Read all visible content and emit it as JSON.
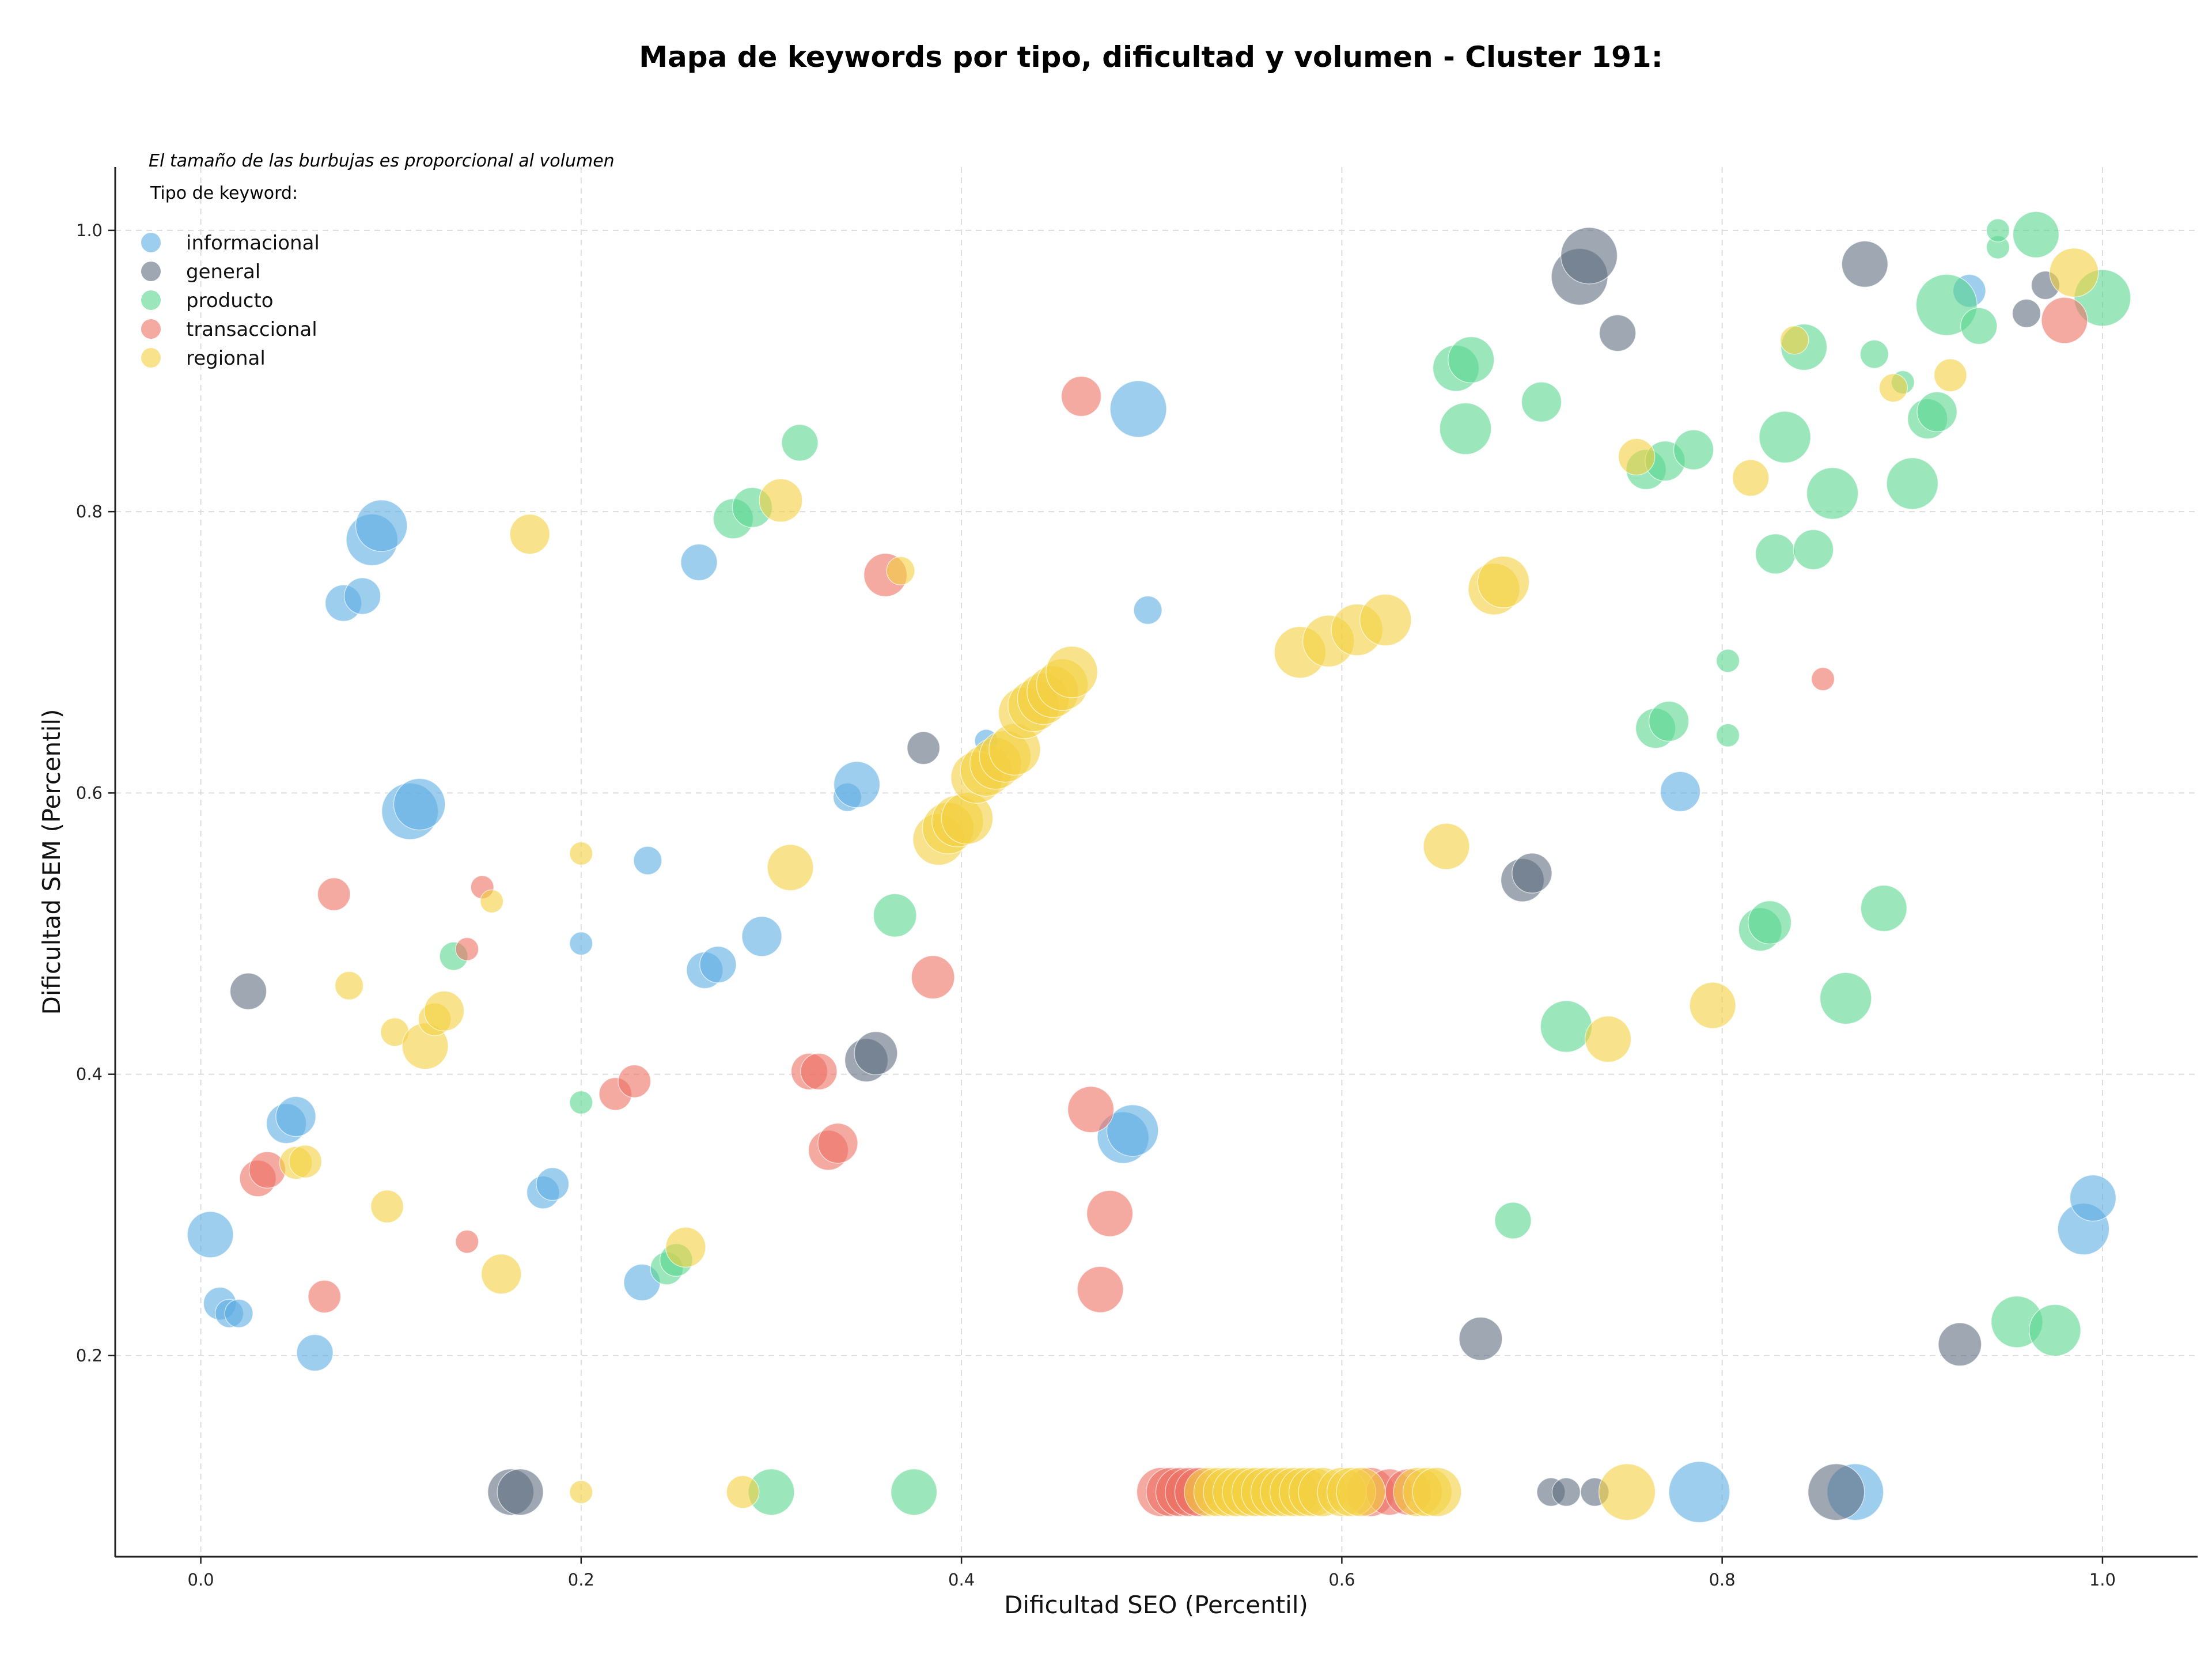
{
  "chart_data": {
    "type": "scatter",
    "title": "Mapa de keywords por tipo, dificultad y volumen - Cluster 191:",
    "xlabel": "Dificultad SEO (Percentil)",
    "ylabel": "Dificultad SEM (Percentil)",
    "xlim": [
      -0.045,
      1.05
    ],
    "ylim": [
      0.057,
      1.045
    ],
    "xticks": [
      "0.0",
      "0.2",
      "0.4",
      "0.6",
      "0.8",
      "1.0"
    ],
    "yticks": [
      "0.2",
      "0.4",
      "0.6",
      "0.8",
      "1.0"
    ],
    "grid": true,
    "note": "El tamaño de las burbujas es proporcional al volumen",
    "legend": {
      "title": "Tipo de keyword:",
      "placement": "top-left",
      "entries": [
        "informacional",
        "general",
        "producto",
        "transaccional",
        "regional"
      ]
    },
    "series": [
      {
        "name": "informacional",
        "color": "#5DADE2",
        "points": [
          [
            0.005,
            0.286,
            4
          ],
          [
            0.01,
            0.237,
            2
          ],
          [
            0.015,
            0.23,
            1.5
          ],
          [
            0.02,
            0.23,
            1.5
          ],
          [
            0.045,
            0.365,
            3
          ],
          [
            0.05,
            0.37,
            3
          ],
          [
            0.06,
            0.202,
            2.5
          ],
          [
            0.075,
            0.735,
            2.5
          ],
          [
            0.085,
            0.74,
            2.5
          ],
          [
            0.09,
            0.78,
            5
          ],
          [
            0.095,
            0.79,
            5
          ],
          [
            0.11,
            0.587,
            6
          ],
          [
            0.115,
            0.592,
            5
          ],
          [
            0.18,
            0.316,
            2
          ],
          [
            0.185,
            0.322,
            2
          ],
          [
            0.2,
            0.493,
            1
          ],
          [
            0.235,
            0.552,
            1.5
          ],
          [
            0.232,
            0.252,
            2.5
          ],
          [
            0.262,
            0.764,
            2.5
          ],
          [
            0.265,
            0.474,
            2.5
          ],
          [
            0.272,
            0.478,
            2.5
          ],
          [
            0.295,
            0.498,
            3
          ],
          [
            0.34,
            0.597,
            1.5
          ],
          [
            0.345,
            0.606,
            4
          ],
          [
            0.413,
            0.637,
            1
          ],
          [
            0.485,
            0.355,
            5
          ],
          [
            0.49,
            0.36,
            5
          ],
          [
            0.493,
            0.873,
            6
          ],
          [
            0.498,
            0.73,
            1.5
          ],
          [
            0.778,
            0.601,
            3
          ],
          [
            0.788,
            0.103,
            7
          ],
          [
            0.87,
            0.103,
            6
          ],
          [
            0.93,
            0.957,
            2
          ],
          [
            0.99,
            0.29,
            5
          ],
          [
            0.995,
            0.312,
            4
          ]
        ]
      },
      {
        "name": "general",
        "color": "#5D6D7E",
        "points": [
          [
            0.025,
            0.459,
            2.5
          ],
          [
            0.163,
            0.103,
            4
          ],
          [
            0.168,
            0.103,
            4
          ],
          [
            0.35,
            0.41,
            3.5
          ],
          [
            0.355,
            0.415,
            3.5
          ],
          [
            0.38,
            0.632,
            2
          ],
          [
            0.673,
            0.212,
            3.5
          ],
          [
            0.695,
            0.538,
            3.5
          ],
          [
            0.7,
            0.543,
            3
          ],
          [
            0.71,
            0.103,
            1.5
          ],
          [
            0.718,
            0.103,
            1.5
          ],
          [
            0.733,
            0.103,
            1.5
          ],
          [
            0.725,
            0.967,
            6
          ],
          [
            0.73,
            0.982,
            6
          ],
          [
            0.745,
            0.927,
            2.5
          ],
          [
            0.86,
            0.103,
            6
          ],
          [
            0.875,
            0.976,
            4
          ],
          [
            0.925,
            0.208,
            3.5
          ],
          [
            0.96,
            0.941,
            1.5
          ],
          [
            0.97,
            0.961,
            1.5
          ]
        ]
      },
      {
        "name": "producto",
        "color": "#58D68D",
        "points": [
          [
            0.133,
            0.484,
            1.5
          ],
          [
            0.2,
            0.38,
            1
          ],
          [
            0.245,
            0.262,
            2
          ],
          [
            0.25,
            0.268,
            2
          ],
          [
            0.28,
            0.795,
            3
          ],
          [
            0.29,
            0.803,
            3
          ],
          [
            0.315,
            0.849,
            2.5
          ],
          [
            0.3,
            0.103,
            4
          ],
          [
            0.365,
            0.513,
            3.5
          ],
          [
            0.375,
            0.103,
            4
          ],
          [
            0.66,
            0.902,
            4
          ],
          [
            0.668,
            0.908,
            4
          ],
          [
            0.665,
            0.859,
            5
          ],
          [
            0.69,
            0.296,
            2.5
          ],
          [
            0.705,
            0.878,
            3
          ],
          [
            0.718,
            0.434,
            5
          ],
          [
            0.76,
            0.83,
            3
          ],
          [
            0.77,
            0.836,
            3
          ],
          [
            0.765,
            0.646,
            3
          ],
          [
            0.772,
            0.651,
            3
          ],
          [
            0.785,
            0.844,
            3
          ],
          [
            0.803,
            0.694,
            1
          ],
          [
            0.803,
            0.641,
            1
          ],
          [
            0.82,
            0.503,
            3.5
          ],
          [
            0.825,
            0.508,
            3.5
          ],
          [
            0.828,
            0.77,
            3
          ],
          [
            0.833,
            0.853,
            5
          ],
          [
            0.843,
            0.917,
            4
          ],
          [
            0.848,
            0.773,
            3
          ],
          [
            0.858,
            0.813,
            5
          ],
          [
            0.865,
            0.454,
            5
          ],
          [
            0.88,
            0.912,
            1.5
          ],
          [
            0.885,
            0.518,
            4
          ],
          [
            0.895,
            0.892,
            1
          ],
          [
            0.9,
            0.82,
            5
          ],
          [
            0.908,
            0.866,
            3
          ],
          [
            0.913,
            0.871,
            3
          ],
          [
            0.918,
            0.947,
            7
          ],
          [
            0.935,
            0.932,
            2.5
          ],
          [
            0.945,
            0.988,
            1
          ],
          [
            0.945,
            1.0,
            1
          ],
          [
            0.965,
            0.997,
            4
          ],
          [
            0.955,
            0.224,
            5
          ],
          [
            0.975,
            0.218,
            5
          ],
          [
            1.0,
            0.952,
            6
          ]
        ]
      },
      {
        "name": "transaccional",
        "color": "#EC7063",
        "points": [
          [
            0.03,
            0.326,
            2.5
          ],
          [
            0.035,
            0.332,
            2.5
          ],
          [
            0.065,
            0.242,
            2
          ],
          [
            0.07,
            0.528,
            2
          ],
          [
            0.14,
            0.281,
            1
          ],
          [
            0.14,
            0.489,
            1
          ],
          [
            0.148,
            0.533,
            1
          ],
          [
            0.218,
            0.386,
            2
          ],
          [
            0.228,
            0.395,
            2
          ],
          [
            0.32,
            0.402,
            2.5
          ],
          [
            0.325,
            0.402,
            2.5
          ],
          [
            0.33,
            0.346,
            3
          ],
          [
            0.335,
            0.351,
            3
          ],
          [
            0.36,
            0.755,
            3.5
          ],
          [
            0.385,
            0.469,
            3.5
          ],
          [
            0.463,
            0.882,
            3
          ],
          [
            0.468,
            0.375,
            4
          ],
          [
            0.473,
            0.247,
            4
          ],
          [
            0.478,
            0.301,
            4
          ],
          [
            0.505,
            0.103,
            4.5
          ],
          [
            0.51,
            0.103,
            4.5
          ],
          [
            0.515,
            0.103,
            4.5
          ],
          [
            0.52,
            0.103,
            4.5
          ],
          [
            0.525,
            0.103,
            4.5
          ],
          [
            0.615,
            0.103,
            4.5
          ],
          [
            0.625,
            0.103,
            4
          ],
          [
            0.635,
            0.103,
            4
          ],
          [
            0.853,
            0.681,
            1
          ],
          [
            0.98,
            0.936,
            4
          ]
        ]
      },
      {
        "name": "regional",
        "color": "#F4D03F",
        "points": [
          [
            0.05,
            0.337,
            2
          ],
          [
            0.055,
            0.338,
            2
          ],
          [
            0.078,
            0.463,
            1.5
          ],
          [
            0.098,
            0.306,
            2
          ],
          [
            0.102,
            0.43,
            1.5
          ],
          [
            0.118,
            0.42,
            4
          ],
          [
            0.123,
            0.439,
            2
          ],
          [
            0.128,
            0.445,
            3
          ],
          [
            0.158,
            0.258,
            3
          ],
          [
            0.153,
            0.523,
            1
          ],
          [
            0.173,
            0.784,
            3
          ],
          [
            0.2,
            0.557,
            1
          ],
          [
            0.2,
            0.103,
            1
          ],
          [
            0.285,
            0.103,
            2
          ],
          [
            0.255,
            0.277,
            3
          ],
          [
            0.305,
            0.808,
            3.5
          ],
          [
            0.31,
            0.547,
            4
          ],
          [
            0.368,
            0.758,
            1.5
          ],
          [
            0.388,
            0.567,
            5
          ],
          [
            0.393,
            0.575,
            5
          ],
          [
            0.398,
            0.58,
            5
          ],
          [
            0.403,
            0.582,
            5
          ],
          [
            0.408,
            0.611,
            5
          ],
          [
            0.413,
            0.616,
            5
          ],
          [
            0.418,
            0.621,
            5
          ],
          [
            0.423,
            0.626,
            5
          ],
          [
            0.428,
            0.631,
            5
          ],
          [
            0.433,
            0.657,
            5
          ],
          [
            0.438,
            0.662,
            5
          ],
          [
            0.443,
            0.667,
            5
          ],
          [
            0.448,
            0.672,
            5
          ],
          [
            0.453,
            0.677,
            5
          ],
          [
            0.458,
            0.686,
            5
          ],
          [
            0.53,
            0.103,
            4.5
          ],
          [
            0.535,
            0.103,
            4.5
          ],
          [
            0.54,
            0.103,
            4.5
          ],
          [
            0.545,
            0.103,
            4.5
          ],
          [
            0.55,
            0.103,
            4.5
          ],
          [
            0.555,
            0.103,
            4.5
          ],
          [
            0.56,
            0.103,
            4.5
          ],
          [
            0.565,
            0.103,
            4.5
          ],
          [
            0.57,
            0.103,
            4.5
          ],
          [
            0.575,
            0.103,
            4.5
          ],
          [
            0.58,
            0.103,
            4.5
          ],
          [
            0.585,
            0.103,
            4.5
          ],
          [
            0.59,
            0.103,
            4.5
          ],
          [
            0.6,
            0.103,
            4.5
          ],
          [
            0.605,
            0.103,
            4.5
          ],
          [
            0.61,
            0.103,
            4.5
          ],
          [
            0.64,
            0.103,
            4.5
          ],
          [
            0.645,
            0.103,
            4.5
          ],
          [
            0.65,
            0.103,
            4.5
          ],
          [
            0.578,
            0.7,
            5
          ],
          [
            0.593,
            0.708,
            5
          ],
          [
            0.608,
            0.716,
            5
          ],
          [
            0.623,
            0.723,
            5
          ],
          [
            0.655,
            0.562,
            4
          ],
          [
            0.68,
            0.745,
            5
          ],
          [
            0.685,
            0.75,
            5
          ],
          [
            0.74,
            0.425,
            4
          ],
          [
            0.75,
            0.103,
            6
          ],
          [
            0.755,
            0.839,
            2.5
          ],
          [
            0.795,
            0.449,
            4
          ],
          [
            0.815,
            0.824,
            2.5
          ],
          [
            0.838,
            0.922,
            1.5
          ],
          [
            0.89,
            0.888,
            1.5
          ],
          [
            0.92,
            0.897,
            2
          ],
          [
            0.985,
            0.97,
            4.5
          ]
        ]
      }
    ]
  }
}
